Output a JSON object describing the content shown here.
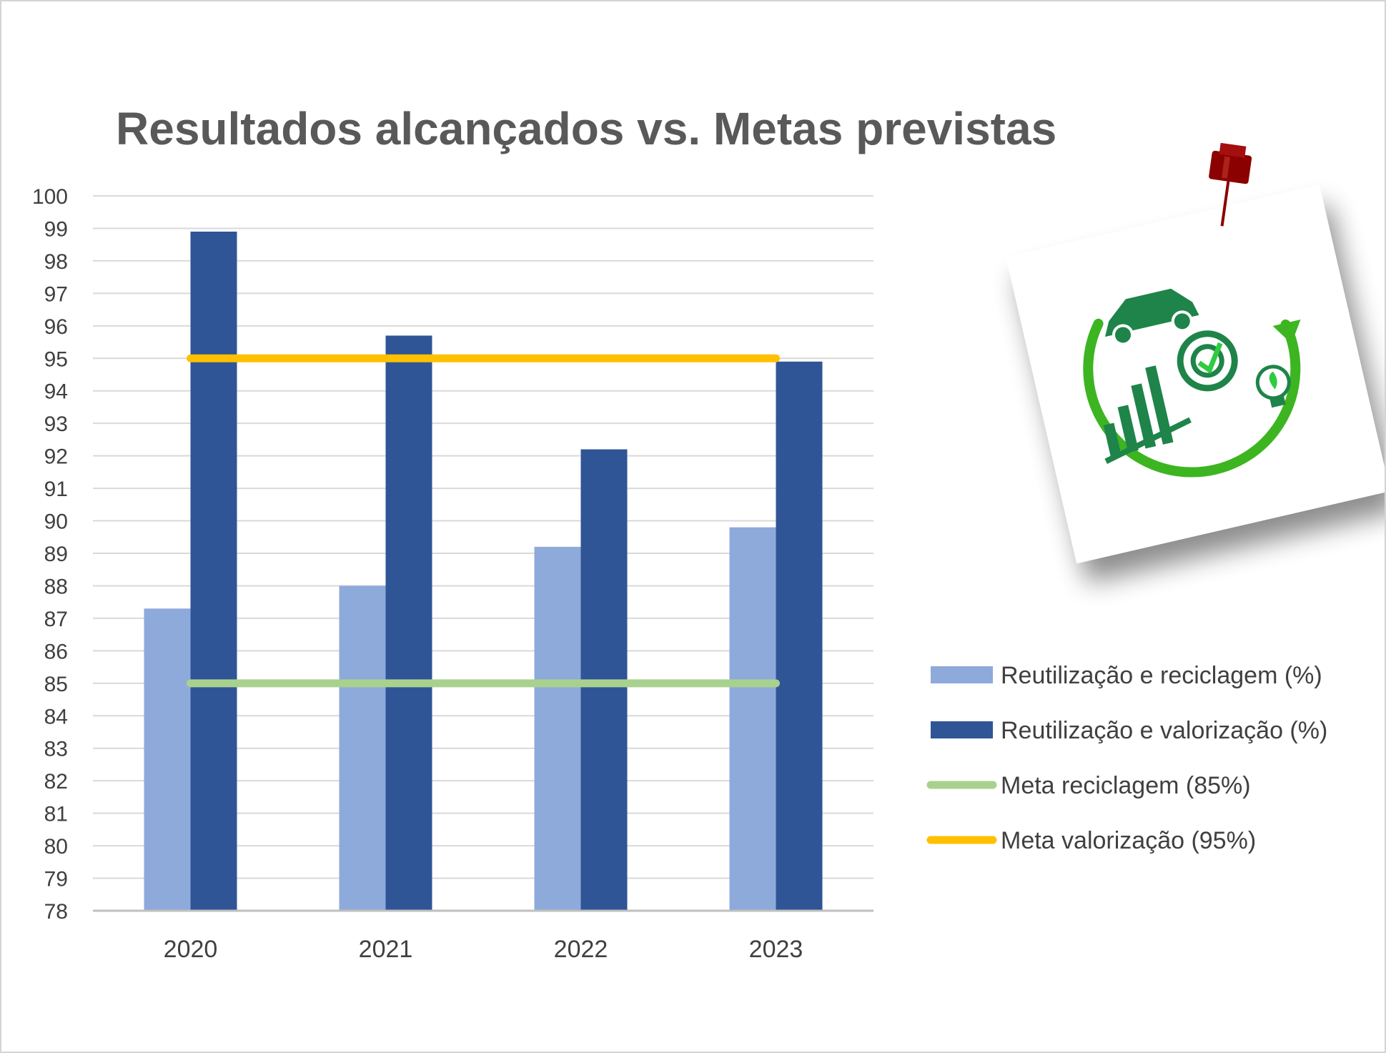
{
  "chart_data": {
    "type": "bar",
    "title": "Resultados alcançados vs. Metas previstas",
    "xlabel": "",
    "ylabel": "",
    "categories": [
      "2020",
      "2021",
      "2022",
      "2023"
    ],
    "ylim": [
      78,
      100
    ],
    "yticks": [
      "78",
      "79",
      "80",
      "81",
      "82",
      "83",
      "84",
      "85",
      "86",
      "87",
      "88",
      "89",
      "90",
      "91",
      "92",
      "93",
      "94",
      "95",
      "96",
      "97",
      "98",
      "99",
      "100"
    ],
    "grid": true,
    "legend_position": "right",
    "series": [
      {
        "name": "Reutilização e reciclagem (%)",
        "kind": "bar",
        "color": "#8eaadb",
        "values": [
          87.3,
          88.0,
          89.2,
          89.8
        ]
      },
      {
        "name": "Reutilização e valorização (%)",
        "kind": "bar",
        "color": "#2f5597",
        "values": [
          98.9,
          95.7,
          92.2,
          94.9
        ]
      },
      {
        "name": "Meta reciclagem (85%)",
        "kind": "line",
        "color": "#a9d18e",
        "values": [
          85,
          85,
          85,
          85
        ]
      },
      {
        "name": "Meta valorização (95%)",
        "kind": "line",
        "color": "#ffc000",
        "values": [
          95,
          95,
          95,
          95
        ]
      }
    ]
  },
  "sticker": {
    "icon_name": "sustainability-cycle-icon",
    "pin_icon": "pushpin-icon",
    "pin_color": "#8b0000",
    "cycle_color": "#3cb521",
    "symbol_color": "#1e8449"
  }
}
